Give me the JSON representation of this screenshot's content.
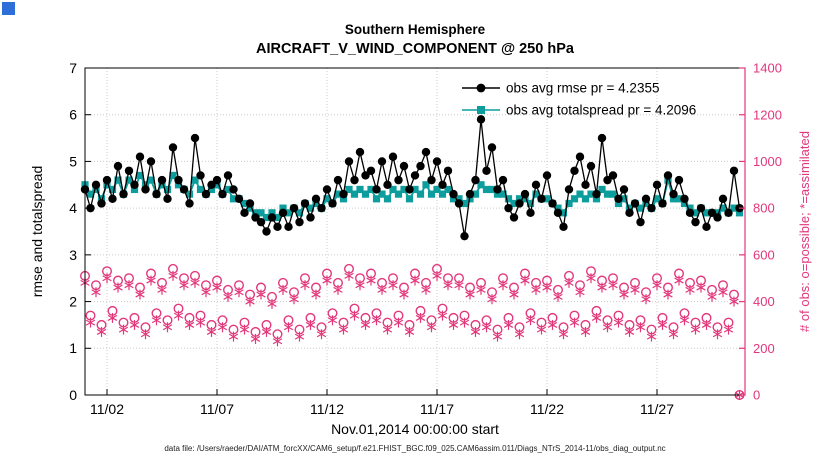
{
  "window": {
    "icon_color": "#2e6ed9"
  },
  "caption": "data file: /Users/raeder/DAI/ATM_forcXX/CAM6_setup/f.e21.FHIST_BGC.f09_025.CAM6assim.011/Diags_NTrS_2014-11/obs_diag_output.nc",
  "chart_data": {
    "type": "line",
    "title": "Southern Hemisphere",
    "subtitle": "AIRCRAFT_V_WIND_COMPONENT @ 250 hPa",
    "xlabel": "Nov.01,2014 00:00:00 start",
    "ylabel_left": "rmse and totalspread",
    "ylabel_right": "# of obs: o=possible; *=assimilated",
    "xlim": [
      1,
      31
    ],
    "ylim_left": [
      0,
      7
    ],
    "ylim_right": [
      0,
      1400
    ],
    "yticks_left": [
      0,
      1,
      2,
      3,
      4,
      5,
      6,
      7
    ],
    "yticks_right": [
      0,
      200,
      400,
      600,
      800,
      1000,
      1200,
      1400
    ],
    "xticks": [
      {
        "t": 2,
        "label": "11/02"
      },
      {
        "t": 7,
        "label": "11/07"
      },
      {
        "t": 12,
        "label": "11/12"
      },
      {
        "t": 17,
        "label": "11/17"
      },
      {
        "t": 22,
        "label": "11/22"
      },
      {
        "t": 27,
        "label": "11/27"
      }
    ],
    "grid": true,
    "legend_position": "top-right-inside",
    "colors": {
      "rmse": "#000000",
      "totalspread": "#0d9d9d",
      "obs": "#e2377b",
      "grid": "#cccccc"
    },
    "legend": [
      {
        "series": "rmse",
        "label": "obs avg rmse pr = 4.2355"
      },
      {
        "series": "totalspread",
        "label": "obs avg totalspread pr = 4.2096"
      }
    ],
    "x": {
      "start": 1.0,
      "step": 0.25,
      "count": 120
    },
    "series": [
      {
        "name": "rmse",
        "axis": "left",
        "marker": "filled-circle",
        "values": [
          4.4,
          4.0,
          4.5,
          4.1,
          4.6,
          4.2,
          4.9,
          4.3,
          4.8,
          4.5,
          5.1,
          4.4,
          5.0,
          4.3,
          4.6,
          4.2,
          5.3,
          4.6,
          4.4,
          4.1,
          5.5,
          4.7,
          4.3,
          4.5,
          4.6,
          4.3,
          4.7,
          4.4,
          4.2,
          3.9,
          4.1,
          3.8,
          3.7,
          3.5,
          3.8,
          3.6,
          3.9,
          3.6,
          4.0,
          3.7,
          4.1,
          3.8,
          4.2,
          4.0,
          4.4,
          4.1,
          4.6,
          4.3,
          5.0,
          4.6,
          5.2,
          4.7,
          4.8,
          4.4,
          5.0,
          4.5,
          5.1,
          4.6,
          4.9,
          4.4,
          4.7,
          4.9,
          5.2,
          4.6,
          5.0,
          4.5,
          4.8,
          4.3,
          4.1,
          3.4,
          4.3,
          4.6,
          5.9,
          4.8,
          5.3,
          4.4,
          4.6,
          4.0,
          3.8,
          4.1,
          4.3,
          3.9,
          4.5,
          4.2,
          4.7,
          4.1,
          3.9,
          3.6,
          4.4,
          4.8,
          5.1,
          4.5,
          4.9,
          4.3,
          5.5,
          4.6,
          4.7,
          4.2,
          4.4,
          3.9,
          4.1,
          3.7,
          4.2,
          4.0,
          4.5,
          4.1,
          4.7,
          4.3,
          4.6,
          4.2,
          3.9,
          3.7,
          4.0,
          3.6,
          3.9,
          3.8,
          4.2,
          3.9,
          4.8,
          4.0
        ]
      },
      {
        "name": "totalspread",
        "axis": "left",
        "marker": "filled-square",
        "values": [
          4.5,
          4.3,
          4.4,
          4.2,
          4.5,
          4.4,
          4.6,
          4.3,
          4.6,
          4.4,
          4.7,
          4.5,
          4.6,
          4.3,
          4.5,
          4.4,
          4.7,
          4.5,
          4.4,
          4.3,
          4.6,
          4.4,
          4.3,
          4.4,
          4.5,
          4.3,
          4.4,
          4.2,
          4.2,
          4.1,
          4.0,
          3.9,
          3.9,
          3.8,
          3.9,
          3.8,
          4.0,
          3.9,
          4.0,
          3.9,
          4.1,
          4.0,
          4.1,
          4.0,
          4.2,
          4.1,
          4.3,
          4.2,
          4.4,
          4.3,
          4.4,
          4.3,
          4.4,
          4.2,
          4.3,
          4.2,
          4.4,
          4.3,
          4.4,
          4.2,
          4.4,
          4.3,
          4.5,
          4.3,
          4.4,
          4.3,
          4.4,
          4.2,
          4.2,
          4.1,
          4.2,
          4.3,
          4.5,
          4.4,
          4.4,
          4.3,
          4.3,
          4.2,
          4.1,
          4.2,
          4.2,
          4.1,
          4.3,
          4.2,
          4.2,
          4.1,
          4.0,
          3.9,
          4.1,
          4.2,
          4.3,
          4.2,
          4.3,
          4.2,
          4.4,
          4.3,
          4.3,
          4.1,
          4.2,
          4.0,
          4.1,
          4.0,
          4.1,
          4.0,
          4.2,
          4.1,
          4.6,
          4.2,
          4.2,
          4.1,
          4.0,
          3.9,
          4.0,
          3.9,
          3.9,
          3.9,
          4.0,
          3.9,
          4.0,
          3.9
        ]
      },
      {
        "name": "possible",
        "axis": "right",
        "marker": "open-circle",
        "values": [
          510,
          340,
          470,
          300,
          530,
          360,
          490,
          310,
          500,
          330,
          460,
          290,
          520,
          350,
          480,
          320,
          540,
          370,
          500,
          330,
          510,
          340,
          470,
          300,
          490,
          320,
          450,
          280,
          470,
          310,
          430,
          270,
          460,
          300,
          420,
          260,
          480,
          320,
          440,
          280,
          500,
          330,
          460,
          290,
          520,
          350,
          480,
          310,
          540,
          370,
          500,
          330,
          520,
          350,
          480,
          310,
          500,
          340,
          460,
          300,
          520,
          360,
          480,
          320,
          540,
          370,
          500,
          330,
          500,
          340,
          460,
          300,
          480,
          320,
          440,
          280,
          500,
          330,
          460,
          290,
          520,
          350,
          480,
          310,
          490,
          330,
          450,
          290,
          510,
          340,
          470,
          300,
          530,
          360,
          490,
          320,
          500,
          340,
          460,
          300,
          480,
          320,
          440,
          280,
          500,
          330,
          460,
          290,
          520,
          350,
          480,
          310,
          490,
          330,
          450,
          290,
          470,
          310,
          430,
          0
        ]
      },
      {
        "name": "assimilated",
        "axis": "right",
        "marker": "asterisk",
        "values": [
          480,
          310,
          440,
          270,
          500,
          330,
          460,
          280,
          470,
          300,
          430,
          260,
          490,
          320,
          450,
          290,
          510,
          340,
          470,
          300,
          480,
          310,
          440,
          270,
          460,
          290,
          420,
          250,
          440,
          280,
          400,
          240,
          430,
          270,
          390,
          230,
          450,
          290,
          410,
          250,
          470,
          300,
          430,
          260,
          490,
          320,
          450,
          280,
          510,
          340,
          470,
          300,
          490,
          320,
          450,
          280,
          470,
          310,
          430,
          270,
          490,
          330,
          450,
          290,
          510,
          340,
          470,
          300,
          470,
          310,
          430,
          270,
          450,
          290,
          410,
          250,
          470,
          300,
          430,
          260,
          490,
          320,
          450,
          280,
          460,
          300,
          420,
          260,
          480,
          310,
          440,
          270,
          500,
          330,
          460,
          290,
          470,
          310,
          430,
          270,
          450,
          290,
          410,
          250,
          470,
          300,
          430,
          260,
          490,
          320,
          450,
          280,
          460,
          300,
          420,
          260,
          440,
          280,
          400,
          0
        ]
      }
    ]
  }
}
